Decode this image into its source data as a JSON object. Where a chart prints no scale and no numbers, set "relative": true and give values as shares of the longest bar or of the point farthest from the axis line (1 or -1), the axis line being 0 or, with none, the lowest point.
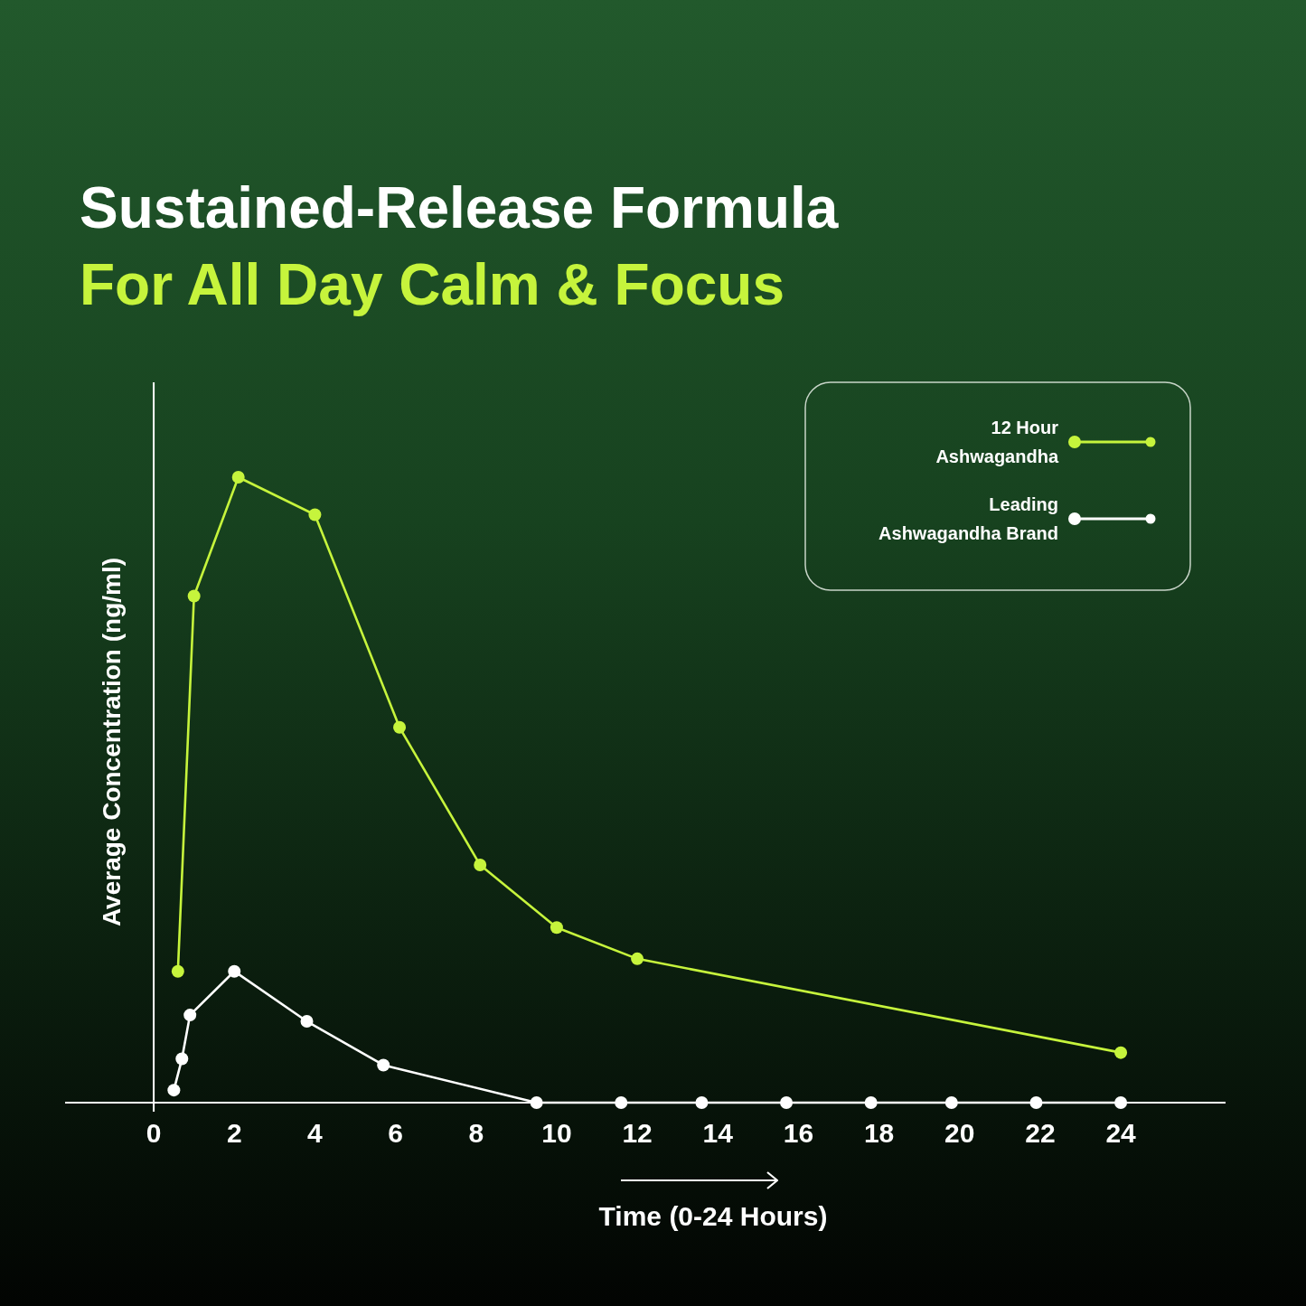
{
  "chart_data": {
    "type": "line",
    "title": "Sustained-Release Formula",
    "subtitle": "For All Day Calm & Focus",
    "xlabel": "Time (0-24 Hours)",
    "ylabel": "Average Concentration (ng/ml)",
    "relative": true,
    "xlim": [
      -2.2,
      26.6
    ],
    "xticks": [
      0,
      2,
      4,
      6,
      8,
      10,
      12,
      14,
      16,
      18,
      20,
      22,
      24
    ],
    "marker": "circle",
    "line_style": "solid",
    "legend": "top right",
    "series": [
      {
        "name": "12 Hour Ashwagandha",
        "color": "#c6f43c",
        "x": [
          0.6,
          1,
          2.1,
          4,
          6.1,
          8.1,
          10,
          12,
          24
        ],
        "values": [
          0.21,
          0.81,
          1,
          0.94,
          0.6,
          0.38,
          0.28,
          0.23,
          0.08
        ]
      },
      {
        "name": "Leading Ashwagandha Brand",
        "color": "#ffffff",
        "x": [
          0.5,
          0.7,
          0.9,
          2,
          3.8,
          5.7,
          9.5,
          11.6,
          13.6,
          15.7,
          17.8,
          19.8,
          21.9,
          24
        ],
        "values": [
          0.02,
          0.07,
          0.14,
          0.21,
          0.13,
          0.06,
          0,
          0,
          0,
          0,
          0,
          0,
          0,
          0
        ]
      }
    ]
  }
}
